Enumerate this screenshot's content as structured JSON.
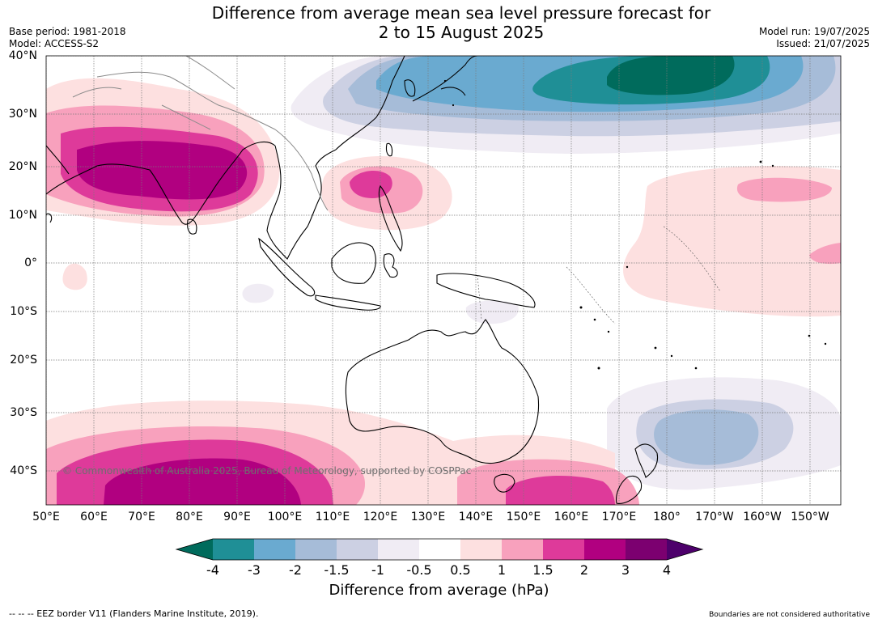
{
  "title_line1": "Difference from average mean sea level pressure forecast for",
  "title_line2": "2 to 15 August 2025",
  "base_period": "Base period: 1981-2018",
  "model": "Model: ACCESS-S2",
  "model_run": "Model run: 19/07/2025",
  "issued": "Issued: 21/07/2025",
  "copyright": "© Commonwealth of Australia 2025, Bureau of Meteorology, supported by COSPPac",
  "lat_labels": [
    "40°N",
    "30°N",
    "20°N",
    "10°N",
    "0°",
    "10°S",
    "20°S",
    "30°S",
    "40°S"
  ],
  "lon_labels": [
    "50°E",
    "60°E",
    "70°E",
    "80°E",
    "90°E",
    "100°E",
    "110°E",
    "120°E",
    "130°E",
    "140°E",
    "150°E",
    "160°E",
    "170°E",
    "180°",
    "170°W",
    "160°W",
    "150°W"
  ],
  "colorbar": {
    "title": "Difference from average (hPa)",
    "tick_labels": [
      "-4",
      "-3",
      "-2",
      "-1.5",
      "-1",
      "-0.5",
      "0.5",
      "1",
      "1.5",
      "2",
      "3",
      "4"
    ],
    "colors": [
      "#006b5c",
      "#1f8f96",
      "#6aaad0",
      "#a6bcd8",
      "#ccd0e3",
      "#f0ecf4",
      "#ffffff",
      "#fde0e0",
      "#f8a1bd",
      "#de3a9a",
      "#b10080",
      "#7c0070",
      "#4d006b"
    ]
  },
  "footer_left": "-- -- -- EEZ border V11 (Flanders Marine Institute, 2019).",
  "footer_right": "Boundaries are not considered authoritative"
}
